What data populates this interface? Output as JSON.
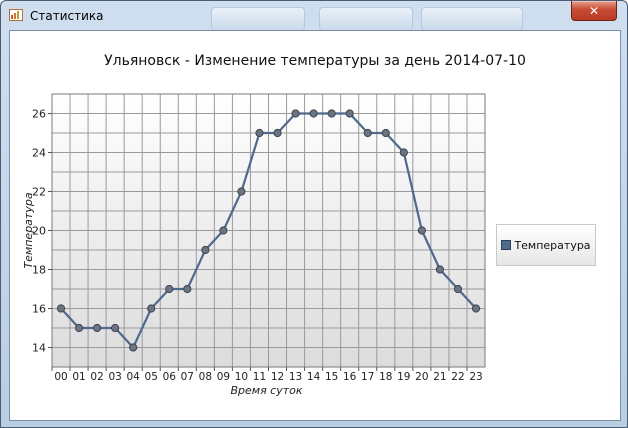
{
  "window": {
    "title": "Статистика",
    "close_label": "✕",
    "icon": "chart-app-icon"
  },
  "chart_data": {
    "type": "line",
    "title": "Ульяновск - Изменение температуры за день 2014-07-10",
    "xlabel": "Время суток",
    "ylabel": "Температура",
    "categories": [
      "00",
      "01",
      "02",
      "03",
      "04",
      "05",
      "06",
      "07",
      "08",
      "09",
      "10",
      "11",
      "12",
      "13",
      "14",
      "15",
      "16",
      "17",
      "18",
      "19",
      "20",
      "21",
      "22",
      "23"
    ],
    "series": [
      {
        "name": "Температура",
        "values": [
          16,
          15,
          15,
          15,
          14,
          16,
          17,
          17,
          19,
          20,
          22,
          25,
          25,
          26,
          26,
          26,
          26,
          25,
          25,
          24,
          20,
          18,
          17,
          16
        ]
      }
    ],
    "ylim": [
      13,
      27
    ],
    "yticks": [
      14,
      16,
      18,
      20,
      22,
      24,
      26
    ],
    "grid": true,
    "legend_position": "right",
    "line_color": "#4f6a8c",
    "marker_color": "#6b7480"
  }
}
